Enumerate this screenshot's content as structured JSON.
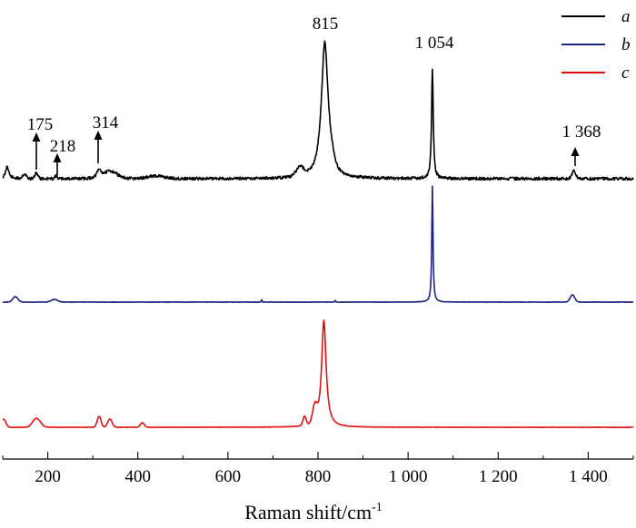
{
  "chart_data": {
    "type": "line",
    "xlabel": "Raman shift/cm",
    "xlabel_superscript": "-1",
    "xlim": [
      100,
      1500
    ],
    "x_ticks": [
      {
        "value": 200,
        "label": "200"
      },
      {
        "value": 400,
        "label": "400"
      },
      {
        "value": 600,
        "label": "600"
      },
      {
        "value": 800,
        "label": "800"
      },
      {
        "value": 1000,
        "label": "1 000"
      },
      {
        "value": 1200,
        "label": "1 200"
      },
      {
        "value": 1400,
        "label": "1 400"
      }
    ],
    "y_axis_visible": false,
    "grid": false,
    "legend_placement": "top-right",
    "series": [
      {
        "name": "a",
        "color": "#000000",
        "peaks": [
          {
            "x": 175,
            "label": "175"
          },
          {
            "x": 218,
            "label": "218"
          },
          {
            "x": 314,
            "label": "314"
          },
          {
            "x": 815,
            "label": "815"
          },
          {
            "x": 1054,
            "label": "1 054"
          },
          {
            "x": 1368,
            "label": "1 368"
          }
        ]
      },
      {
        "name": "b",
        "color": "#1a237e"
      },
      {
        "name": "c",
        "color": "#e01010"
      }
    ]
  }
}
